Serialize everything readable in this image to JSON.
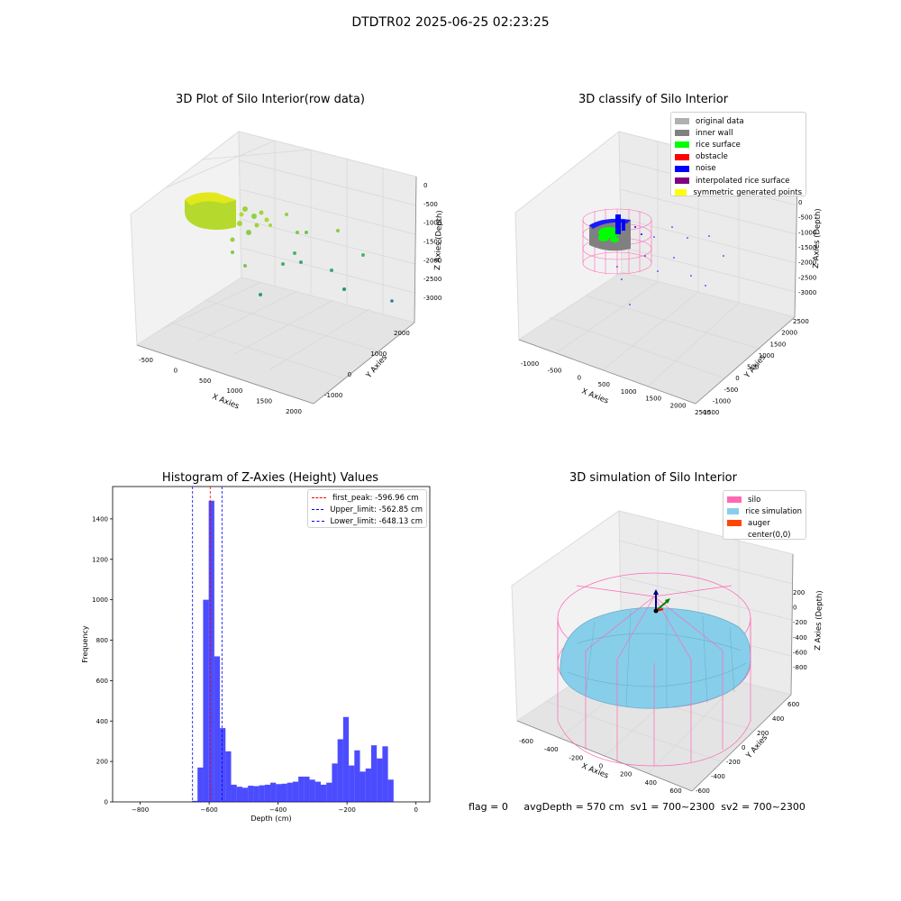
{
  "figure": {
    "suptitle": "DTDTR02 2025-06-25 02:23:25",
    "status": {
      "flag": "flag = 0",
      "avg": "avgDepth = 570 cm",
      "sv1": "sv1 = 700~2300",
      "sv2": "sv2 = 700~2300"
    }
  },
  "colors": {
    "original": "#b0b0b0",
    "inner_wall": "#808080",
    "rice_surface": "#00ff00",
    "obstacle": "#ff0000",
    "noise": "#0000ff",
    "interpolated": "#800080",
    "symmetric": "#ffff00",
    "silo": "#ff69b4",
    "rice_sim": "#87ceeb",
    "auger": "#ff4500",
    "hist": "#0000ff"
  },
  "chart_data": [
    {
      "type": "scatter",
      "title": "3D Plot of Silo Interior(row data)",
      "xlabel": "X Axies",
      "ylabel": "Y Axies",
      "zlabel": "Z Axies (Depth)",
      "x_ticks": [
        "-500",
        "0",
        "500",
        "1000",
        "1500",
        "2000"
      ],
      "y_ticks": [
        "-1000",
        "0",
        "1000",
        "2000"
      ],
      "z_ticks": [
        "0",
        "-500",
        "-1000",
        "-1500",
        "-2000",
        "-2500",
        "-3000"
      ],
      "colormap": "viridis by depth"
    },
    {
      "type": "scatter",
      "title": "3D classify of Silo Interior",
      "xlabel": "X Axies",
      "ylabel": "Y Axies",
      "zlabel": "Z Axies (Depth)",
      "x_ticks": [
        "-1000",
        "-500",
        "0",
        "500",
        "1000",
        "1500",
        "2000",
        "2500"
      ],
      "y_ticks": [
        "-1500",
        "-1000",
        "-500",
        "0",
        "500",
        "1000",
        "1500",
        "2000",
        "2500"
      ],
      "z_ticks": [
        "0",
        "-500",
        "-1000",
        "-1500",
        "-2000",
        "-2500",
        "-3000"
      ],
      "legend_position": "top-right",
      "legend": [
        "original data",
        "inner wall",
        "rice surface",
        "obstacle",
        "noise",
        "interpolated rice surface",
        "symmetric generated points"
      ]
    },
    {
      "type": "bar",
      "title": "Histogram of Z-Axies (Height) Values",
      "xlabel": "Depth (cm)",
      "ylabel": "Frequency",
      "xlim": [
        -880,
        40
      ],
      "ylim": [
        0,
        1560
      ],
      "x_ticks": [
        -800,
        -600,
        -400,
        -200,
        0
      ],
      "y_ticks": [
        0,
        200,
        400,
        600,
        800,
        1000,
        1200,
        1400
      ],
      "bin_width": 16.25,
      "bins": [
        {
          "x0": -650,
          "v": 5
        },
        {
          "x0": -633.75,
          "v": 170
        },
        {
          "x0": -617.5,
          "v": 1000
        },
        {
          "x0": -601.25,
          "v": 1490
        },
        {
          "x0": -585,
          "v": 720
        },
        {
          "x0": -568.75,
          "v": 365
        },
        {
          "x0": -552.5,
          "v": 250
        },
        {
          "x0": -536.25,
          "v": 85
        },
        {
          "x0": -520,
          "v": 75
        },
        {
          "x0": -503.75,
          "v": 70
        },
        {
          "x0": -487.5,
          "v": 80
        },
        {
          "x0": -471.25,
          "v": 78
        },
        {
          "x0": -455,
          "v": 82
        },
        {
          "x0": -438.75,
          "v": 85
        },
        {
          "x0": -422.5,
          "v": 95
        },
        {
          "x0": -406.25,
          "v": 88
        },
        {
          "x0": -390,
          "v": 90
        },
        {
          "x0": -373.75,
          "v": 95
        },
        {
          "x0": -357.5,
          "v": 100
        },
        {
          "x0": -341.25,
          "v": 125
        },
        {
          "x0": -325,
          "v": 125
        },
        {
          "x0": -308.75,
          "v": 110
        },
        {
          "x0": -292.5,
          "v": 100
        },
        {
          "x0": -276.25,
          "v": 85
        },
        {
          "x0": -260,
          "v": 95
        },
        {
          "x0": -243.75,
          "v": 190
        },
        {
          "x0": -227.5,
          "v": 310
        },
        {
          "x0": -211.25,
          "v": 420
        },
        {
          "x0": -195,
          "v": 180
        },
        {
          "x0": -178.75,
          "v": 255
        },
        {
          "x0": -162.5,
          "v": 150
        },
        {
          "x0": -146.25,
          "v": 165
        },
        {
          "x0": -130,
          "v": 280
        },
        {
          "x0": -113.75,
          "v": 215
        },
        {
          "x0": -97.5,
          "v": 275
        },
        {
          "x0": -81.25,
          "v": 110
        }
      ],
      "vlines": [
        {
          "label": "first_peak: -596.96 cm",
          "x": -596.96,
          "color": "#ff0000"
        },
        {
          "label": "Upper_limit: -562.85 cm",
          "x": -562.85,
          "color": "#0000ff"
        },
        {
          "label": "Lower_limit: -648.13 cm",
          "x": -648.13,
          "color": "#0000ff"
        }
      ],
      "legend_position": "top-right"
    },
    {
      "type": "area",
      "title": "3D simulation of Silo Interior",
      "xlabel": "X Axies",
      "ylabel": "Y Axies",
      "zlabel": "Z Axies (Depth)",
      "x_ticks": [
        "-600",
        "-400",
        "-200",
        "0",
        "200",
        "400",
        "600"
      ],
      "y_ticks": [
        "-600",
        "-400",
        "-200",
        "0",
        "200",
        "400",
        "600"
      ],
      "z_ticks": [
        "200",
        "0",
        "-200",
        "-400",
        "-600",
        "-800"
      ],
      "legend_position": "top-right",
      "legend": [
        "silo",
        "rice simulation",
        "auger",
        "center(0,0)"
      ]
    }
  ]
}
